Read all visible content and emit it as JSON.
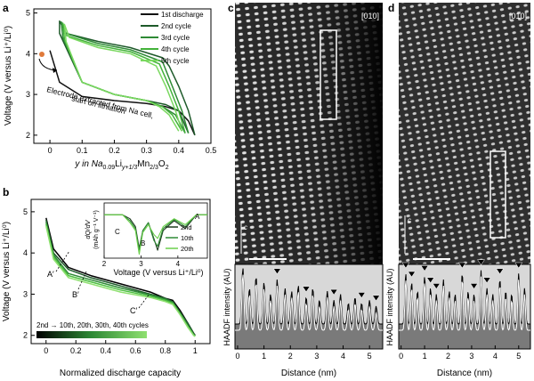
{
  "figure": {
    "panel_labels": {
      "a": "a",
      "b": "b",
      "c": "c",
      "d": "d"
    },
    "colors": {
      "cycle1": "#111111",
      "cycle2": "#1e5a2a",
      "cycle3": "#2e8a35",
      "cycle4": "#43b23a",
      "cycle5": "#7ad860",
      "haadf_fill": "#7a7a7a",
      "haadf_bg": "#d8d8d8",
      "arrow_dot": "#e07a3a"
    }
  },
  "panel_a": {
    "ylabel": "Voltage (V versus Li⁺/Li⁰)",
    "xlabel_parts": [
      "y in Na",
      "0.09",
      "Li",
      "y+1/3",
      "Mn",
      "2/3",
      "O",
      "2"
    ],
    "legend": [
      "1st discharge",
      "2nd cycle",
      "3rd cycle",
      "4th cycle",
      "5th cycle"
    ],
    "annotation_line1": "Electrode extracted from Na cell,",
    "annotation_line2": "start on lithiation",
    "chart_data": {
      "type": "line",
      "xlabel": "y in Na0.09Liy+1/3Mn2/3O2",
      "ylabel": "Voltage (V versus Li+/Li0)",
      "xlim": [
        -0.05,
        0.5
      ],
      "ylim": [
        1.8,
        5.1
      ],
      "xticks": [
        "0",
        "0.1",
        "0.2",
        "0.3",
        "0.4",
        "0.5"
      ],
      "yticks": [
        "2",
        "3",
        "4",
        "5"
      ],
      "start_point": [
        0.0,
        4.08
      ],
      "series": [
        {
          "name": "1st discharge",
          "x": [
            0.0,
            0.03,
            0.1,
            0.2,
            0.3,
            0.36,
            0.4,
            0.43,
            0.45
          ],
          "y": [
            4.08,
            3.3,
            2.95,
            2.85,
            2.78,
            2.7,
            2.6,
            2.35,
            2.0
          ]
        },
        {
          "name": "2nd cycle",
          "x": [
            0.45,
            0.43,
            0.4,
            0.37,
            0.35,
            0.25,
            0.15,
            0.05,
            0.03,
            0.03,
            0.1,
            0.2,
            0.3,
            0.36,
            0.4,
            0.43
          ],
          "y": [
            2.0,
            2.6,
            3.2,
            3.7,
            3.9,
            4.15,
            4.3,
            4.5,
            4.8,
            4.5,
            3.3,
            3.0,
            2.85,
            2.75,
            2.6,
            2.05
          ]
        },
        {
          "name": "3rd cycle",
          "x": [
            0.43,
            0.41,
            0.38,
            0.35,
            0.25,
            0.15,
            0.05,
            0.035,
            0.04,
            0.1,
            0.2,
            0.3,
            0.35,
            0.39,
            0.42
          ],
          "y": [
            2.05,
            2.6,
            3.2,
            3.8,
            4.1,
            4.25,
            4.5,
            4.78,
            4.4,
            3.3,
            3.0,
            2.85,
            2.7,
            2.5,
            2.05
          ]
        },
        {
          "name": "4th cycle",
          "x": [
            0.42,
            0.4,
            0.37,
            0.34,
            0.25,
            0.15,
            0.05,
            0.04,
            0.045,
            0.1,
            0.2,
            0.3,
            0.35,
            0.38,
            0.41
          ],
          "y": [
            2.05,
            2.6,
            3.2,
            3.75,
            4.05,
            4.2,
            4.45,
            4.75,
            4.35,
            3.3,
            3.0,
            2.85,
            2.7,
            2.5,
            2.1
          ]
        },
        {
          "name": "5th cycle",
          "x": [
            0.41,
            0.39,
            0.36,
            0.33,
            0.25,
            0.15,
            0.06,
            0.045,
            0.05,
            0.1,
            0.2,
            0.3,
            0.34,
            0.37,
            0.4
          ],
          "y": [
            2.1,
            2.6,
            3.2,
            3.7,
            4.0,
            4.15,
            4.4,
            4.72,
            4.3,
            3.3,
            3.0,
            2.85,
            2.7,
            2.5,
            2.1
          ]
        }
      ]
    }
  },
  "panel_b": {
    "ylabel": "Voltage (V versus Li⁺/Li⁰)",
    "xlabel": "Normalized discharge capacity",
    "marker_labels": [
      "A′",
      "B′",
      "C′"
    ],
    "colorbar_label": "2nd → 10th, 20th, 30th, 40th cycles",
    "chart_data": {
      "type": "line",
      "xlabel": "Normalized discharge capacity",
      "ylabel": "Voltage (V versus Li+/Li0)",
      "xlim": [
        -0.1,
        1.1
      ],
      "ylim": [
        1.8,
        5.3
      ],
      "xticks": [
        "0",
        "0.2",
        "0.4",
        "0.6",
        "0.8",
        "1"
      ],
      "yticks": [
        "2",
        "3",
        "4",
        "5"
      ],
      "series": [
        {
          "name": "2nd",
          "x": [
            0.0,
            0.05,
            0.15,
            0.3,
            0.5,
            0.7,
            0.8,
            0.85,
            0.9,
            0.95,
            0.99,
            1.0
          ],
          "y": [
            4.85,
            4.1,
            3.65,
            3.45,
            3.25,
            3.05,
            2.9,
            2.85,
            2.6,
            2.3,
            2.05,
            2.0
          ]
        },
        {
          "name": "10th",
          "x": [
            0.0,
            0.05,
            0.15,
            0.3,
            0.5,
            0.7,
            0.8,
            0.85,
            0.9,
            0.95,
            0.99,
            1.0
          ],
          "y": [
            4.8,
            4.0,
            3.6,
            3.4,
            3.2,
            3.0,
            2.9,
            2.82,
            2.55,
            2.3,
            2.05,
            2.0
          ]
        },
        {
          "name": "20th",
          "x": [
            0.0,
            0.05,
            0.15,
            0.3,
            0.5,
            0.7,
            0.8,
            0.85,
            0.9,
            0.95,
            0.99,
            1.0
          ],
          "y": [
            4.75,
            3.95,
            3.5,
            3.35,
            3.15,
            2.98,
            2.88,
            2.8,
            2.55,
            2.25,
            2.02,
            2.0
          ]
        },
        {
          "name": "30th",
          "x": [
            0.0,
            0.05,
            0.15,
            0.3,
            0.5,
            0.7,
            0.8,
            0.85,
            0.9,
            0.95,
            0.99,
            1.0
          ],
          "y": [
            4.7,
            3.9,
            3.45,
            3.3,
            3.1,
            2.95,
            2.85,
            2.78,
            2.5,
            2.22,
            2.0,
            1.98
          ]
        },
        {
          "name": "40th",
          "x": [
            0.0,
            0.05,
            0.15,
            0.3,
            0.5,
            0.7,
            0.8,
            0.85,
            0.9,
            0.95,
            0.99,
            1.0
          ],
          "y": [
            4.65,
            3.85,
            3.4,
            3.25,
            3.05,
            2.92,
            2.82,
            2.75,
            2.5,
            2.2,
            2.0,
            1.97
          ]
        }
      ]
    },
    "inset": {
      "ylabel_line1": "dQ/dV",
      "ylabel_line2": "(mAh g⁻¹ V⁻¹)",
      "xlabel": "Voltage (V versus Li⁺/Li⁰)",
      "markers": [
        "A",
        "B",
        "C"
      ],
      "legend": [
        "2nd",
        "10th",
        "20th"
      ],
      "chart_data": {
        "type": "line",
        "xlim": [
          2,
          4.8
        ],
        "xticks": [
          "2",
          "3",
          "4"
        ],
        "series": [
          {
            "name": "2nd",
            "x": [
              2.0,
              2.5,
              2.7,
              2.85,
              2.95,
              3.05,
              3.2,
              3.35,
              3.45,
              3.6,
              3.9,
              4.2,
              4.5,
              4.8
            ],
            "y": [
              0,
              0,
              -0.1,
              -0.3,
              -0.85,
              -0.4,
              -0.2,
              -0.6,
              -0.9,
              -0.4,
              -0.15,
              -0.35,
              0,
              0
            ]
          },
          {
            "name": "10th",
            "x": [
              2.0,
              2.5,
              2.7,
              2.85,
              2.95,
              3.05,
              3.2,
              3.35,
              3.45,
              3.6,
              3.9,
              4.2,
              4.5,
              4.8
            ],
            "y": [
              0,
              0,
              -0.15,
              -0.35,
              -0.9,
              -0.4,
              -0.2,
              -0.65,
              -0.8,
              -0.35,
              -0.12,
              -0.3,
              0,
              0
            ]
          },
          {
            "name": "20th",
            "x": [
              2.0,
              2.5,
              2.7,
              2.85,
              2.95,
              3.05,
              3.2,
              3.35,
              3.45,
              3.6,
              3.9,
              4.2,
              4.5,
              4.8
            ],
            "y": [
              0,
              0,
              -0.2,
              -0.4,
              -1.0,
              -0.45,
              -0.25,
              -0.5,
              -0.6,
              -0.3,
              -0.1,
              -0.25,
              0,
              0
            ]
          }
        ]
      }
    }
  },
  "panel_c": {
    "zone_axis": "[010]",
    "c_axis_label": "c",
    "ylabel": "HAADF intensity (AU)",
    "xlabel": "Distance (nm)",
    "xticks": [
      "0",
      "1",
      "2",
      "3",
      "4",
      "5"
    ],
    "chart_data": {
      "type": "line",
      "xlabel": "Distance (nm)",
      "ylabel": "HAADF intensity (AU)",
      "xlim": [
        -0.1,
        5.5
      ],
      "peaks_x": [
        0.2,
        0.45,
        0.7,
        1.0,
        1.25,
        1.5,
        1.8,
        2.05,
        2.3,
        2.6,
        2.85,
        3.1,
        3.4,
        3.65,
        3.9,
        4.2,
        4.45,
        4.7,
        5.0,
        5.25
      ],
      "peaks_h": [
        0.95,
        0.6,
        0.8,
        0.7,
        0.5,
        0.75,
        0.6,
        0.55,
        0.65,
        0.45,
        0.6,
        0.4,
        0.55,
        0.4,
        0.5,
        0.35,
        0.45,
        0.35,
        0.4,
        0.3
      ],
      "minor_markers_x": [
        1.5,
        2.6,
        3.65,
        4.7,
        5.25
      ]
    }
  },
  "panel_d": {
    "zone_axis": "[010]",
    "c_axis_label": "c",
    "ylabel": "HAADF intensity (AU)",
    "xlabel": "Distance (nm)",
    "xticks": [
      "0",
      "1",
      "2",
      "3",
      "4",
      "5"
    ],
    "chart_data": {
      "type": "line",
      "xlabel": "Distance (nm)",
      "ylabel": "HAADF intensity (AU)",
      "xlim": [
        -0.1,
        5.5
      ],
      "peaks_x": [
        0.2,
        0.45,
        0.7,
        1.0,
        1.25,
        1.5,
        1.8,
        2.05,
        2.3,
        2.6,
        2.85,
        3.1,
        3.4,
        3.65,
        3.9,
        4.2,
        4.45,
        4.7,
        5.0,
        5.25
      ],
      "peaks_h": [
        0.85,
        0.7,
        0.55,
        0.8,
        0.6,
        0.5,
        0.75,
        0.55,
        0.5,
        0.85,
        0.55,
        0.5,
        0.9,
        0.6,
        0.5,
        0.75,
        0.55,
        0.5,
        0.85,
        0.6
      ],
      "peak_markers_x": [
        0.2,
        0.45,
        1.0,
        1.25,
        1.5,
        2.6,
        3.1,
        3.4,
        3.65,
        4.2,
        5.0
      ]
    }
  }
}
